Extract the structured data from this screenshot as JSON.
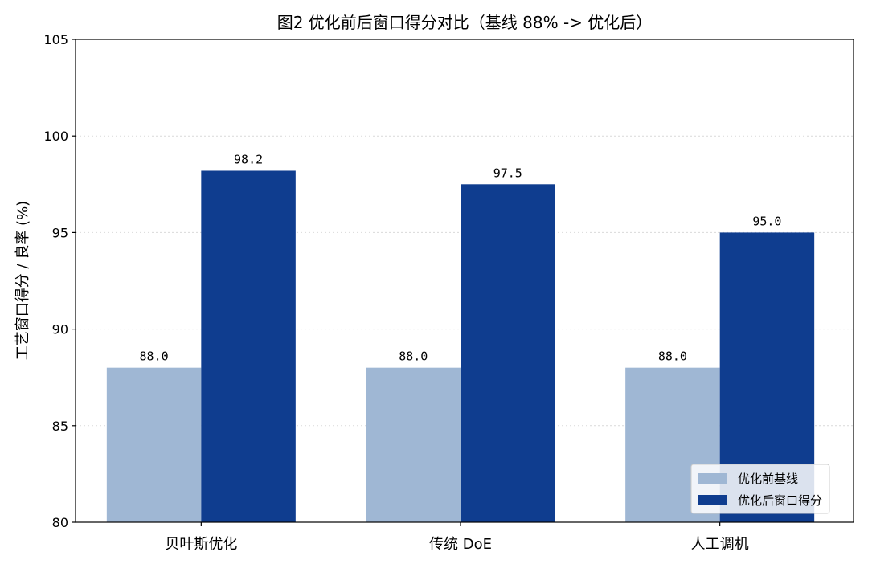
{
  "chart_data": {
    "type": "bar",
    "title": "图2  优化前后窗口得分对比（基线 88% -> 优化后）",
    "xlabel": "",
    "ylabel": "工艺窗口得分 / 良率 (%)",
    "ylim": [
      80,
      105
    ],
    "yticks": [
      80,
      85,
      90,
      95,
      100,
      105
    ],
    "categories": [
      "贝叶斯优化",
      "传统 DoE",
      "人工调机"
    ],
    "series": [
      {
        "name": "优化前基线",
        "values": [
          88.0,
          88.0,
          88.0
        ],
        "labels": [
          "88.0",
          "88.0",
          "88.0"
        ],
        "color": "#9fb7d4"
      },
      {
        "name": "优化后窗口得分",
        "values": [
          98.2,
          97.5,
          95.0
        ],
        "labels": [
          "98.2",
          "97.5",
          "95.0"
        ],
        "color": "#0f3d8f"
      }
    ],
    "grid": true,
    "legend_position": "bottom-right"
  }
}
